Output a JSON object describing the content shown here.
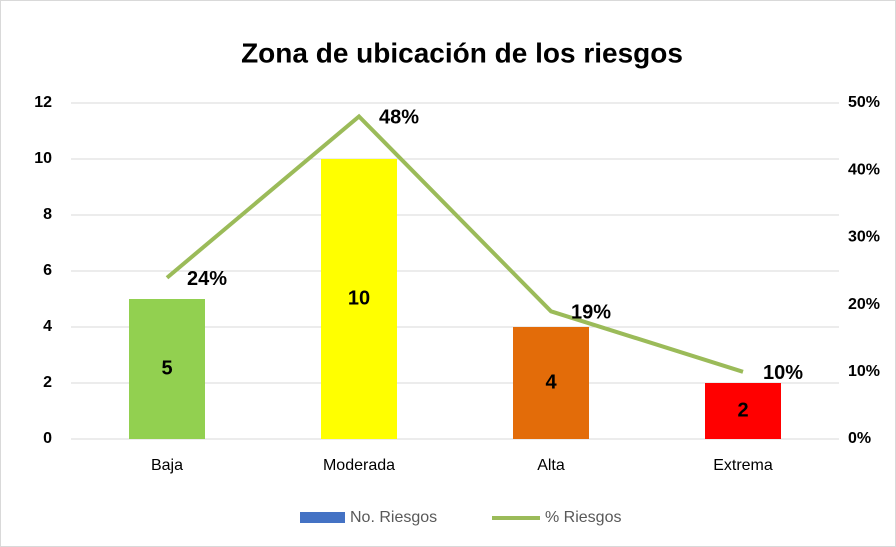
{
  "chart_data": {
    "type": "bar",
    "title": "Zona de ubicación de los  riesgos",
    "categories": [
      "Baja",
      "Moderada",
      "Alta",
      "Extrema"
    ],
    "series": [
      {
        "name": "No. Riesgos",
        "color": "#4472c4",
        "colors": [
          "#92d050",
          "#ffff00",
          "#e36c09",
          "#ff0000"
        ],
        "values": [
          5,
          10,
          4,
          2
        ]
      },
      {
        "name": "% Riesgos",
        "type": "line",
        "axis": "y2",
        "color": "#9bbb59",
        "values": [
          24,
          48,
          19,
          10
        ],
        "value_labels": [
          "24%",
          "48%",
          "19%",
          "10%"
        ]
      }
    ],
    "ylim": [
      0,
      12
    ],
    "yticks": [
      0,
      2,
      4,
      6,
      8,
      10,
      12
    ],
    "y2lim": [
      0,
      50
    ],
    "y2ticks": [
      {
        "value": 0,
        "label": "0%"
      },
      {
        "value": 10,
        "label": "10%"
      },
      {
        "value": 20,
        "label": "20%"
      },
      {
        "value": 30,
        "label": "30%"
      },
      {
        "value": 40,
        "label": "40%"
      },
      {
        "value": 50,
        "label": "50%"
      }
    ],
    "grid": true,
    "legend": "bottom"
  }
}
